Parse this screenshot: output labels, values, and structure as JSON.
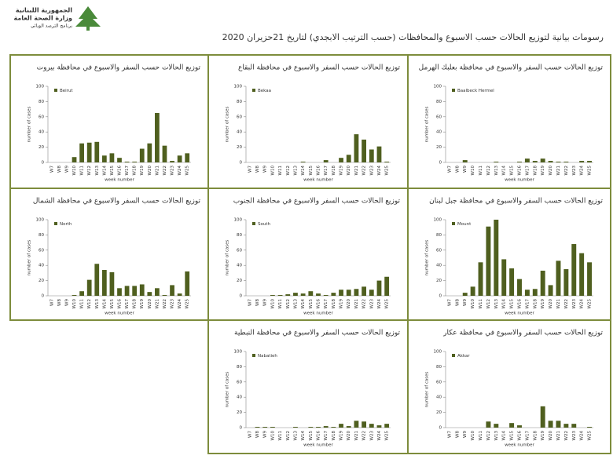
{
  "header": {
    "logo_lines": [
      "الجمهورية اللبنانية",
      "وزارة الصحة العامة",
      "برنامج الترصد الوبائي"
    ],
    "title": "رسومات بيانية لتوزيع الحالات حسب الاسبوع والمحافظات (حسب الترتيب الابجدي) لتاريخ 21حزيران 2020"
  },
  "chart_data": [
    {
      "type": "bar",
      "title": "توزيع الحالات حسب السفر والاسبوع في محافظة بيروت",
      "x_label": "week number",
      "y_label": "number of cases",
      "categories": [
        "W7",
        "W8",
        "W9",
        "W10",
        "W11",
        "W12",
        "W13",
        "W14",
        "W15",
        "W16",
        "W17",
        "W18",
        "W19",
        "W20",
        "W21",
        "W22",
        "W23",
        "W24",
        "W25"
      ],
      "series": [
        {
          "name": "Beirut",
          "color": "#4f5f1f",
          "values": [
            0,
            0,
            0,
            7,
            25,
            26,
            27,
            9,
            12,
            6,
            1,
            1,
            18,
            25,
            65,
            22,
            2,
            9,
            12
          ]
        }
      ],
      "ylim": [
        0,
        100
      ],
      "yticks": [
        0,
        20,
        40,
        60,
        80,
        100
      ],
      "legend": "top-left"
    },
    {
      "type": "bar",
      "title": "توزيع الحالات حسب السفر والاسبوع في محافظة البقاع",
      "x_label": "week number",
      "y_label": "number of cases",
      "categories": [
        "W7",
        "W8",
        "W9",
        "W10",
        "W11",
        "W12",
        "W13",
        "W14",
        "W15",
        "W16",
        "W17",
        "W18",
        "W19",
        "W20",
        "W21",
        "W22",
        "W23",
        "W24",
        "W25"
      ],
      "series": [
        {
          "name": "Bekaa",
          "color": "#4f5f1f",
          "values": [
            0,
            0,
            0,
            0,
            0,
            0,
            0,
            1,
            0,
            0,
            3,
            0,
            6,
            10,
            37,
            30,
            17,
            21,
            1
          ]
        }
      ],
      "ylim": [
        0,
        100
      ],
      "yticks": [
        0,
        20,
        40,
        60,
        80,
        100
      ],
      "legend": "top-left"
    },
    {
      "type": "bar",
      "title": "توزيع الحالات حسب السفر والاسبوع في محافظة بعلبك الهرمل",
      "x_label": "week number",
      "y_label": "number of cases",
      "categories": [
        "W7",
        "W8",
        "W9",
        "W10",
        "W11",
        "W12",
        "W13",
        "W14",
        "W15",
        "W16",
        "W17",
        "W18",
        "W19",
        "W20",
        "W21",
        "W22",
        "W23",
        "W24",
        "W25"
      ],
      "series": [
        {
          "name": "Baalbeck Hermel",
          "color": "#4f5f1f",
          "values": [
            0,
            0,
            3,
            0,
            0,
            0,
            1,
            0,
            0,
            1,
            5,
            2,
            5,
            2,
            1,
            1,
            0,
            2,
            2
          ]
        }
      ],
      "ylim": [
        0,
        100
      ],
      "yticks": [
        0,
        20,
        40,
        60,
        80,
        100
      ],
      "legend": "top-left"
    },
    {
      "type": "bar",
      "title": "توزيع الحالات حسب السفر والاسبوع في محافظة الشمال",
      "x_label": "week number",
      "y_label": "number of cases",
      "categories": [
        "W7",
        "W8",
        "W9",
        "W10",
        "W11",
        "W12",
        "W13",
        "W14",
        "W15",
        "W16",
        "W17",
        "W18",
        "W19",
        "W20",
        "W21",
        "W22",
        "W23",
        "W24",
        "W25"
      ],
      "series": [
        {
          "name": "North",
          "color": "#4f5f1f",
          "values": [
            0,
            0,
            0,
            1,
            6,
            21,
            42,
            34,
            31,
            10,
            13,
            13,
            15,
            5,
            10,
            1,
            14,
            3,
            32
          ]
        }
      ],
      "ylim": [
        0,
        100
      ],
      "yticks": [
        0,
        20,
        40,
        60,
        80,
        100
      ],
      "legend": "top-left"
    },
    {
      "type": "bar",
      "title": "توزيع الحالات حسب السفر والاسبوع في محافظة الجنوب",
      "x_label": "week number",
      "y_label": "number of cases",
      "categories": [
        "W7",
        "W8",
        "W9",
        "W10",
        "W11",
        "W12",
        "W13",
        "W14",
        "W15",
        "W16",
        "W17",
        "W18",
        "W19",
        "W20",
        "W21",
        "W22",
        "W23",
        "W24",
        "W25"
      ],
      "series": [
        {
          "name": "South",
          "color": "#4f5f1f",
          "values": [
            0,
            0,
            0,
            1,
            1,
            2,
            4,
            3,
            6,
            3,
            1,
            4,
            8,
            8,
            9,
            12,
            8,
            20,
            25
          ]
        }
      ],
      "ylim": [
        0,
        100
      ],
      "yticks": [
        0,
        20,
        40,
        60,
        80,
        100
      ],
      "legend": "top-left"
    },
    {
      "type": "bar",
      "title": "توزيع الحالات حسب السفر والاسبوع في محافظة جبل لبنان",
      "x_label": "week number",
      "y_label": "number of cases",
      "categories": [
        "W7",
        "W8",
        "W9",
        "W10",
        "W11",
        "W12",
        "W13",
        "W14",
        "W15",
        "W16",
        "W17",
        "W18",
        "W19",
        "W20",
        "W21",
        "W22",
        "W23",
        "W24",
        "W25"
      ],
      "series": [
        {
          "name": "Mount",
          "color": "#4f5f1f",
          "values": [
            0,
            0,
            4,
            12,
            44,
            91,
            100,
            48,
            36,
            22,
            8,
            9,
            33,
            14,
            46,
            35,
            68,
            56,
            44
          ]
        }
      ],
      "ylim": [
        0,
        100
      ],
      "yticks": [
        0,
        20,
        40,
        60,
        80,
        100
      ],
      "legend": "top-left"
    },
    {
      "type": "bar",
      "title": "توزيع الحالات حسب السفر والاسبوع في محافظة النبطية",
      "x_label": "week number",
      "y_label": "number of cases",
      "categories": [
        "W7",
        "W8",
        "W9",
        "W10",
        "W11",
        "W12",
        "W13",
        "W14",
        "W15",
        "W16",
        "W17",
        "W18",
        "W19",
        "W20",
        "W21",
        "W22",
        "W23",
        "W24",
        "W25"
      ],
      "series": [
        {
          "name": "Nabatieh",
          "color": "#4f5f1f",
          "values": [
            0,
            1,
            1,
            1,
            0,
            0,
            1,
            0,
            1,
            1,
            2,
            1,
            5,
            2,
            9,
            8,
            5,
            3,
            5
          ]
        }
      ],
      "ylim": [
        0,
        100
      ],
      "yticks": [
        0,
        20,
        40,
        60,
        80,
        100
      ],
      "legend": "top-left"
    },
    {
      "type": "bar",
      "title": "توزيع الحالات حسب السفر والاسبوع في محافظة عكار",
      "x_label": "week number",
      "y_label": "number of cases",
      "categories": [
        "W7",
        "W8",
        "W9",
        "W10",
        "W11",
        "W12",
        "W13",
        "W14",
        "W15",
        "W16",
        "W17",
        "W18",
        "W19",
        "W20",
        "W21",
        "W22",
        "W23",
        "W24",
        "W25"
      ],
      "series": [
        {
          "name": "Akkar",
          "color": "#4f5f1f",
          "values": [
            0,
            0,
            0,
            0,
            0,
            8,
            5,
            0,
            6,
            3,
            0,
            0,
            28,
            9,
            9,
            5,
            5,
            0,
            1
          ]
        }
      ],
      "ylim": [
        0,
        100
      ],
      "yticks": [
        0,
        20,
        40,
        60,
        80,
        100
      ],
      "legend": "top-left"
    }
  ]
}
